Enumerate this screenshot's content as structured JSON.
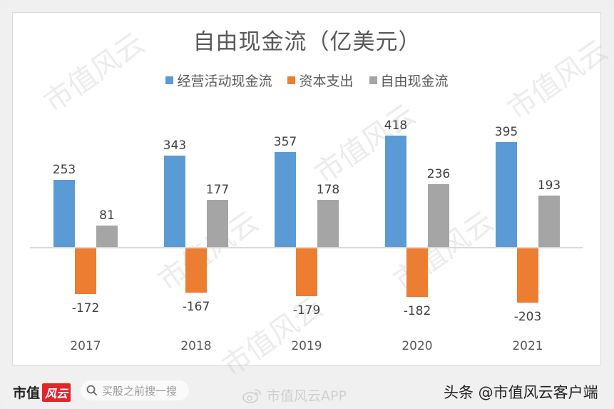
{
  "chart_data": {
    "type": "bar",
    "title": "自由现金流（亿美元）",
    "categories": [
      "2017",
      "2018",
      "2019",
      "2020",
      "2021"
    ],
    "series": [
      {
        "name": "经营活动现金流",
        "color": "#5b9bd5",
        "values": [
          253,
          343,
          357,
          418,
          395
        ]
      },
      {
        "name": "资本支出",
        "color": "#ed7d31",
        "values": [
          -172,
          -167,
          -179,
          -182,
          -203
        ]
      },
      {
        "name": "自由现金流",
        "color": "#a5a5a5",
        "values": [
          81,
          177,
          178,
          236,
          193
        ]
      }
    ],
    "xlabel": "",
    "ylabel": "",
    "grid": false,
    "legend_position": "top",
    "data_labels": true
  },
  "footer": {
    "logo_text": "市值",
    "logo_badge": "风云",
    "search_placeholder": "买股之前搜一搜",
    "weibo_text": "市值风云APP",
    "toutiao_text": "头条 @市值风云客户端"
  },
  "watermark": "市值风云"
}
